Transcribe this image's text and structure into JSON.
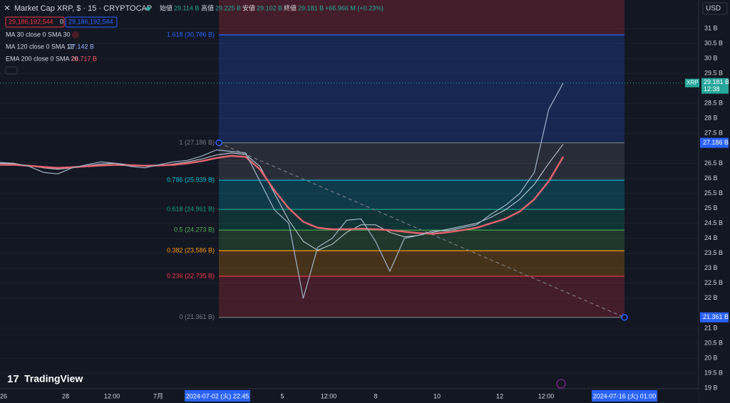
{
  "header": {
    "symbol": "Market Cap XRP, $ · 15 · CRYPTOCAP",
    "ohlc": [
      {
        "label": "始値",
        "value": "29.114 B"
      },
      {
        "label": "高値",
        "value": "29.225 B"
      },
      {
        "label": "安値",
        "value": "29.102 B"
      },
      {
        "label": "終値",
        "value": "29.181 B"
      }
    ],
    "change": "+66.966 M (+0.23%)"
  },
  "order": {
    "sell": "29,186,192,544",
    "spread": "0",
    "buy": "29,186,192,544"
  },
  "indicators": [
    {
      "label": "MA 30 close 0 SMA 30"
    },
    {
      "label": "MA 120 close 0 SMA 12",
      "value": "27.142 B",
      "color": "#8fb5ff"
    },
    {
      "label": "EMA 200 close 0 SMA 20",
      "value": "26.717 B",
      "color": "#f7525f"
    }
  ],
  "currency": "USD",
  "price_axis": {
    "ylim": [
      18.98,
      31.95
    ],
    "ticks": [
      {
        "value": 31,
        "label": "31 B"
      },
      {
        "value": 30.5,
        "label": "30.5 B"
      },
      {
        "value": 30,
        "label": "30 B"
      },
      {
        "value": 29.5,
        "label": "29.5 B"
      },
      {
        "value": 28.5,
        "label": "28.5 B"
      },
      {
        "value": 28,
        "label": "28 B"
      },
      {
        "value": 27.5,
        "label": "27.5 B"
      },
      {
        "value": 26.5,
        "label": "26.5 B"
      },
      {
        "value": 26,
        "label": "26 B"
      },
      {
        "value": 25.5,
        "label": "25.5 B"
      },
      {
        "value": 25,
        "label": "25 B"
      },
      {
        "value": 24.5,
        "label": "24.5 B"
      },
      {
        "value": 24,
        "label": "24 B"
      },
      {
        "value": 23.5,
        "label": "23.5 B"
      },
      {
        "value": 23,
        "label": "23 B"
      },
      {
        "value": 22.5,
        "label": "22.5 B"
      },
      {
        "value": 22,
        "label": "22 B"
      },
      {
        "value": 21,
        "label": "21 B"
      },
      {
        "value": 20.5,
        "label": "20.5 B"
      },
      {
        "value": 20,
        "label": "20 B"
      },
      {
        "value": 19.5,
        "label": "19.5 B"
      },
      {
        "value": 19,
        "label": "19 B"
      }
    ]
  },
  "price_badges": {
    "symbol": "XRP",
    "last": "29.181 B",
    "countdown": "12:38",
    "fib_high": "27.186 B",
    "fib_low": "21.361 B"
  },
  "fib": [
    {
      "label": "1.618 (30.786 B)",
      "value": 30.786,
      "color": "#2962ff"
    },
    {
      "label": "1 (27.186 B)",
      "value": 27.186,
      "color": "#787b86"
    },
    {
      "label": "0.786 (25.939 B)",
      "value": 25.939,
      "color": "#00bcd4"
    },
    {
      "label": "0.618 (24.961 B)",
      "value": 24.961,
      "color": "#089981"
    },
    {
      "label": "0.5 (24.273 B)",
      "value": 24.273,
      "color": "#4caf50"
    },
    {
      "label": "0.382 (23.586 B)",
      "value": 23.586,
      "color": "#ff9800"
    },
    {
      "label": "0.236 (22.735 B)",
      "value": 22.735,
      "color": "#f23645"
    },
    {
      "label": "0 (21.361 B)",
      "value": 21.361,
      "color": "#787b86"
    }
  ],
  "price": {
    "color": "#9fb4c8",
    "values": [
      26.53,
      26.5,
      26.4,
      26.2,
      26.15,
      26.35,
      26.45,
      26.55,
      26.5,
      26.4,
      26.35,
      26.45,
      26.55,
      26.6,
      26.75,
      26.95,
      26.9,
      26.85,
      25.9,
      24.95,
      24.5,
      22.0,
      23.7,
      24.0,
      24.6,
      24.65,
      23.9,
      22.9,
      24.0,
      24.1,
      24.25,
      24.25,
      24.35,
      24.45,
      24.8,
      25.1,
      25.5,
      26.2,
      28.3,
      29.18
    ]
  },
  "ma": {
    "color": "#c8d4e0",
    "values": [
      26.5,
      26.48,
      26.42,
      26.35,
      26.3,
      26.35,
      26.42,
      26.48,
      26.5,
      26.45,
      26.4,
      26.42,
      26.48,
      26.55,
      26.65,
      26.78,
      26.85,
      26.8,
      26.4,
      25.5,
      24.6,
      23.9,
      23.6,
      23.8,
      24.2,
      24.45,
      24.45,
      24.2,
      24.05,
      24.1,
      24.2,
      24.3,
      24.4,
      24.5,
      24.7,
      24.95,
      25.3,
      25.8,
      26.5,
      27.14
    ]
  },
  "ema": {
    "color": "#e2646e",
    "values": [
      26.45,
      26.45,
      26.42,
      26.38,
      26.35,
      26.37,
      26.4,
      26.43,
      26.45,
      26.44,
      26.42,
      26.43,
      26.45,
      26.5,
      26.58,
      26.68,
      26.75,
      26.72,
      26.3,
      25.6,
      25.0,
      24.55,
      24.35,
      24.3,
      24.3,
      24.32,
      24.3,
      24.27,
      24.22,
      24.17,
      24.15,
      24.2,
      24.27,
      24.35,
      24.5,
      24.65,
      24.9,
      25.3,
      25.9,
      26.72
    ]
  },
  "time_axis": {
    "labels": [
      "26",
      "28",
      "12:00",
      "7月",
      "2024-07-02 (火)  22:45",
      "5",
      "12:00",
      "8",
      "10",
      "12",
      "12:00",
      "2024-07-16 (火)  01:00"
    ]
  },
  "brand": "TradingView"
}
